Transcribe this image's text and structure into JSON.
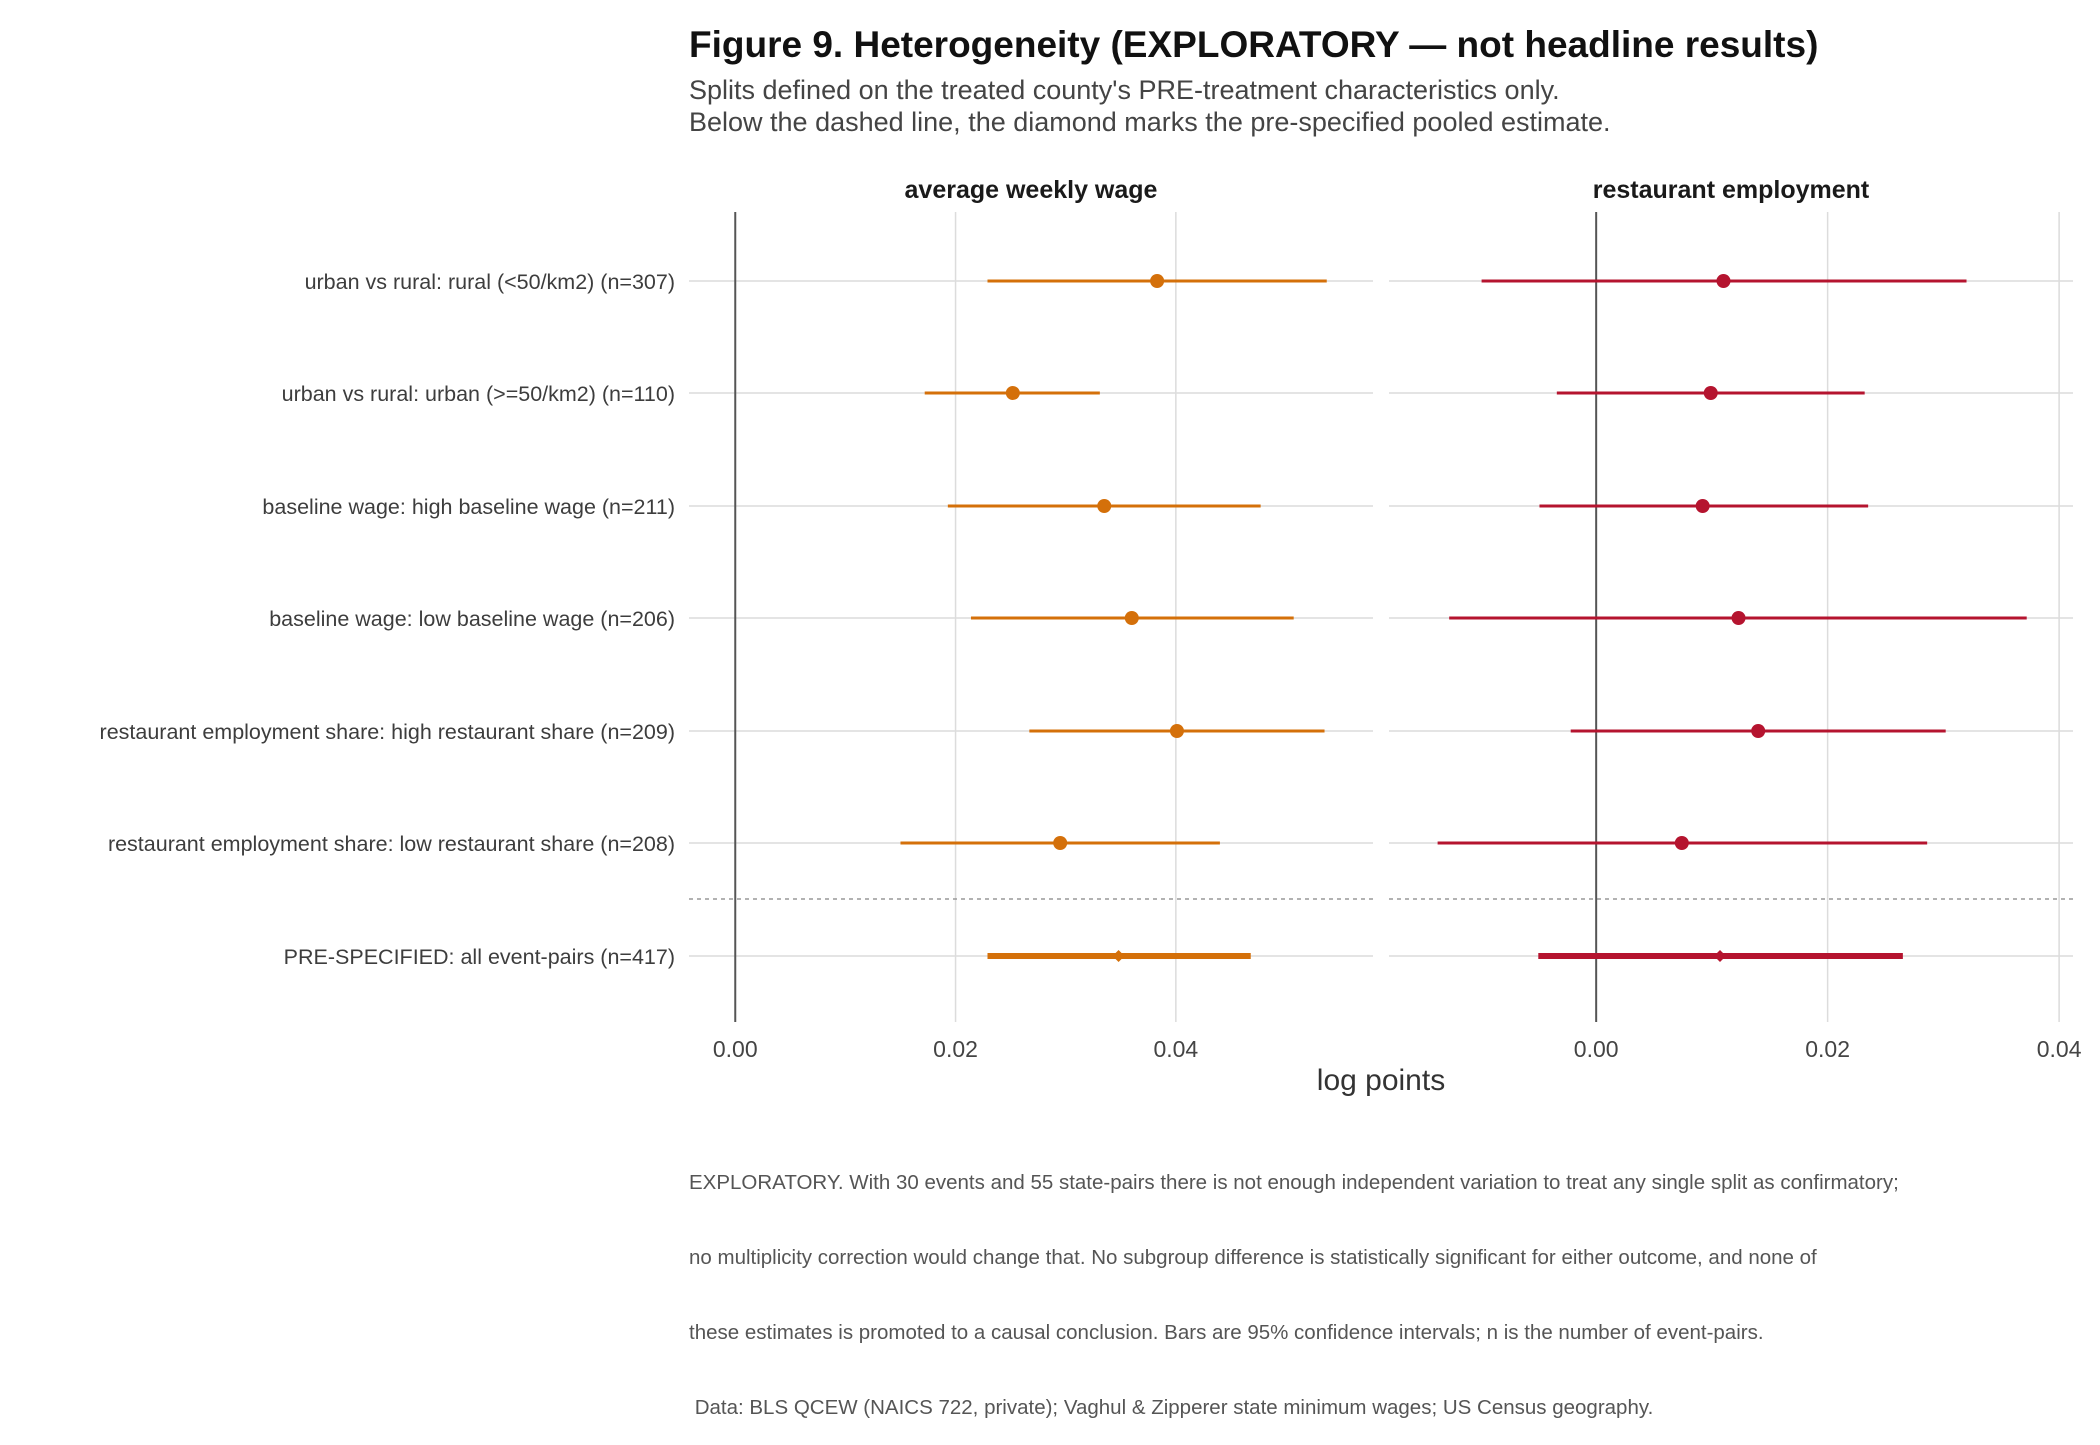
{
  "header": {
    "title": "Figure 9. Heterogeneity (EXPLORATORY — not headline results)",
    "subtitle_lines": [
      "Splits defined on the treated county's PRE-treatment characteristics only.",
      "Below the dashed line, the diamond marks the pre-specified pooled estimate."
    ]
  },
  "caption_lines": [
    "EXPLORATORY. With 30 events and 55 state-pairs there is not enough independent variation to treat any single split as confirmatory;",
    "no multiplicity correction would change that. No subgroup difference is statistically significant for either outcome, and none of",
    "these estimates is promoted to a causal conclusion. Bars are 95% confidence intervals; n is the number of event-pairs.",
    " Data: BLS QCEW (NAICS 722, private); Vaghul & Zipperer state minimum wages; US Census geography."
  ],
  "chart_data": {
    "type": "forest",
    "xlabel": "log points",
    "rows": [
      "urban vs rural: rural (<50/km2)  (n=307)",
      "urban vs rural: urban (>=50/km2)  (n=110)",
      "baseline wage: high baseline wage  (n=211)",
      "baseline wage: low baseline wage  (n=206)",
      "restaurant employment share: high restaurant share  (n=209)",
      "restaurant employment share: low restaurant share  (n=208)",
      "PRE-SPECIFIED: all event-pairs  (n=417)"
    ],
    "pooled_row_index": 6,
    "facets": [
      {
        "title": "average weekly wage",
        "color": "#D4700A",
        "xlim": [
          -0.0042,
          0.0579
        ],
        "ticks": [
          0.0,
          0.02,
          0.04
        ],
        "tick_labels": [
          "0.00",
          "0.02",
          "0.04"
        ],
        "estimates": [
          0.0383,
          0.0252,
          0.0335,
          0.036,
          0.0401,
          0.0295,
          0.0348
        ],
        "ci_low": [
          0.0229,
          0.0172,
          0.0193,
          0.0214,
          0.0267,
          0.015,
          0.0229
        ],
        "ci_high": [
          0.0537,
          0.0331,
          0.0477,
          0.0507,
          0.0535,
          0.044,
          0.0468
        ]
      },
      {
        "title": "restaurant employment",
        "color": "#B5142F",
        "xlim": [
          -0.0179,
          0.0412
        ],
        "ticks": [
          0.0,
          0.02,
          0.04
        ],
        "tick_labels": [
          "0.00",
          "0.02",
          "0.04"
        ],
        "estimates": [
          0.011,
          0.0099,
          0.0092,
          0.0123,
          0.014,
          0.0074,
          0.0107
        ],
        "ci_low": [
          -0.0099,
          -0.0034,
          -0.0049,
          -0.0127,
          -0.0022,
          -0.0137,
          -0.005
        ],
        "ci_high": [
          0.032,
          0.0232,
          0.0235,
          0.0372,
          0.0302,
          0.0286,
          0.0265
        ]
      }
    ]
  }
}
